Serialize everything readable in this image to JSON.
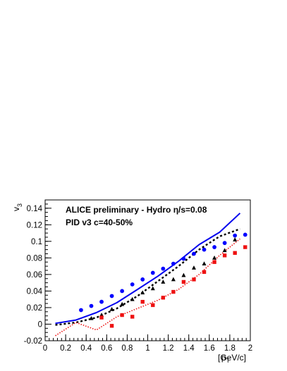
{
  "chart_data": {
    "type": "scatter",
    "annotation": {
      "line1": "ALICE preliminary - Hydro η/s=0.08",
      "line2": "PID v3 c=40-50%"
    },
    "xlabel": "p",
    "xlabel_sub": "T",
    "xlabel_unit": "[GeV/c]",
    "ylabel": "v",
    "ylabel_sub": "3",
    "xlim": [
      0,
      2
    ],
    "ylim": [
      -0.02,
      0.15
    ],
    "xticks": [
      0,
      0.2,
      0.4,
      0.6,
      0.8,
      1,
      1.2,
      1.4,
      1.6,
      1.8,
      2
    ],
    "xtick_labels": [
      "0",
      "0.2",
      "0.4",
      "0.6",
      "0.8",
      "1",
      "1.2",
      "1.4",
      "1.6",
      "1.8",
      "2"
    ],
    "yticks": [
      -0.02,
      0,
      0.02,
      0.04,
      0.06,
      0.08,
      0.1,
      0.12,
      0.14
    ],
    "ytick_labels": [
      "-0.02",
      "0",
      "0.02",
      "0.04",
      "0.06",
      "0.08",
      "0.1",
      "0.12",
      "0.14"
    ],
    "grid": false,
    "series": [
      {
        "kind": "markers",
        "marker": "circle",
        "color": "#0000ff",
        "x": [
          0.35,
          0.45,
          0.55,
          0.65,
          0.75,
          0.85,
          0.95,
          1.05,
          1.15,
          1.25,
          1.35,
          1.45,
          1.55,
          1.65,
          1.75,
          1.85,
          1.95
        ],
        "y": [
          0.017,
          0.022,
          0.027,
          0.034,
          0.04,
          0.048,
          0.054,
          0.062,
          0.067,
          0.073,
          0.079,
          0.085,
          0.09,
          0.093,
          0.098,
          0.107,
          0.108
        ]
      },
      {
        "kind": "markers",
        "marker": "triangle",
        "color": "#000000",
        "x": [
          0.45,
          0.55,
          0.65,
          0.75,
          0.85,
          0.95,
          1.05,
          1.15,
          1.25,
          1.35,
          1.45,
          1.55,
          1.65,
          1.75,
          1.85
        ],
        "y": [
          0.007,
          0.011,
          0.018,
          0.024,
          0.03,
          0.038,
          0.043,
          0.051,
          0.054,
          0.059,
          0.068,
          0.073,
          0.08,
          0.089,
          0.102
        ]
      },
      {
        "kind": "markers",
        "marker": "square",
        "color": "#ee1111",
        "x": [
          0.55,
          0.65,
          0.75,
          0.85,
          0.95,
          1.05,
          1.15,
          1.25,
          1.35,
          1.45,
          1.55,
          1.65,
          1.75,
          1.85,
          1.95
        ],
        "y": [
          0.008,
          -0.002,
          0.011,
          0.009,
          0.027,
          0.023,
          0.032,
          0.039,
          0.051,
          0.054,
          0.063,
          0.075,
          0.083,
          0.086,
          0.093
        ]
      },
      {
        "kind": "line",
        "style": "solid",
        "color": "#0000ee",
        "x": [
          0.1,
          0.3,
          0.5,
          0.7,
          0.9,
          1.1,
          1.3,
          1.5,
          1.7,
          1.9
        ],
        "y": [
          0.001,
          0.005,
          0.014,
          0.026,
          0.042,
          0.058,
          0.076,
          0.096,
          0.111,
          0.134
        ]
      },
      {
        "kind": "line",
        "style": "dashed",
        "color": "#000000",
        "x": [
          0.1,
          0.3,
          0.5,
          0.7,
          0.9,
          1.1,
          1.3,
          1.5,
          1.7,
          1.9
        ],
        "y": [
          -0.001,
          0.002,
          0.008,
          0.019,
          0.034,
          0.052,
          0.07,
          0.09,
          0.106,
          0.115
        ]
      },
      {
        "kind": "line",
        "style": "dotted",
        "color": "#ee1111",
        "x": [
          0.1,
          0.3,
          0.5,
          0.7,
          0.9,
          1.1,
          1.3,
          1.5,
          1.7,
          1.9
        ],
        "y": [
          -0.014,
          0.002,
          -0.007,
          0.009,
          0.019,
          0.029,
          0.042,
          0.06,
          0.083,
          0.103
        ]
      }
    ]
  }
}
